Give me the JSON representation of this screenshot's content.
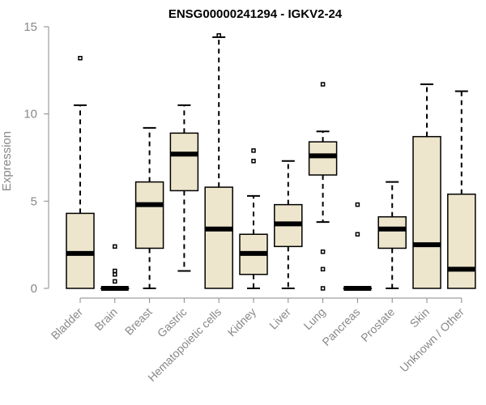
{
  "chart_data": {
    "type": "box",
    "title": "ENSG00000241294 - IGKV2-24",
    "ylabel": "Expression",
    "ylim": [
      0,
      15
    ],
    "yticks": [
      0,
      5,
      10,
      15
    ],
    "box_color": "#EDE6CC",
    "categories": [
      "Bladder",
      "Brain",
      "Breast",
      "Gastric",
      "Hematopoietic cells",
      "Kidney",
      "Liver",
      "Lung",
      "Pancreas",
      "Prostate",
      "Skin",
      "Unknown / Other"
    ],
    "boxes": [
      {
        "min": 0,
        "q1": 0,
        "median": 2.0,
        "q3": 4.3,
        "max": 10.5,
        "outliers": [
          13.2
        ]
      },
      {
        "min": 0,
        "q1": 0,
        "median": 0.0,
        "q3": 0.0,
        "max": 0.0,
        "outliers": [
          0.4,
          0.8,
          1.0,
          2.4
        ]
      },
      {
        "min": 0,
        "q1": 2.3,
        "median": 4.8,
        "q3": 6.1,
        "max": 9.2,
        "outliers": []
      },
      {
        "min": 1.0,
        "q1": 5.6,
        "median": 7.7,
        "q3": 8.9,
        "max": 10.5,
        "outliers": []
      },
      {
        "min": 0,
        "q1": 0,
        "median": 3.4,
        "q3": 5.8,
        "max": 14.4,
        "outliers": [
          14.5
        ]
      },
      {
        "min": 0,
        "q1": 0.8,
        "median": 2.0,
        "q3": 3.1,
        "max": 5.3,
        "outliers": [
          7.3,
          7.9
        ]
      },
      {
        "min": 0,
        "q1": 2.4,
        "median": 3.7,
        "q3": 4.8,
        "max": 7.3,
        "outliers": []
      },
      {
        "min": 3.8,
        "q1": 6.5,
        "median": 7.6,
        "q3": 8.4,
        "max": 9.0,
        "outliers": [
          0.0,
          1.1,
          2.1,
          11.7
        ]
      },
      {
        "min": 0,
        "q1": 0,
        "median": 0.0,
        "q3": 0.0,
        "max": 0.0,
        "outliers": [
          3.1,
          4.8
        ]
      },
      {
        "min": 0,
        "q1": 2.3,
        "median": 3.4,
        "q3": 4.1,
        "max": 6.1,
        "outliers": []
      },
      {
        "min": 0,
        "q1": 0,
        "median": 2.5,
        "q3": 8.7,
        "max": 11.7,
        "outliers": []
      },
      {
        "min": 0,
        "q1": 0,
        "median": 1.1,
        "q3": 5.4,
        "max": 11.3,
        "outliers": []
      }
    ]
  }
}
